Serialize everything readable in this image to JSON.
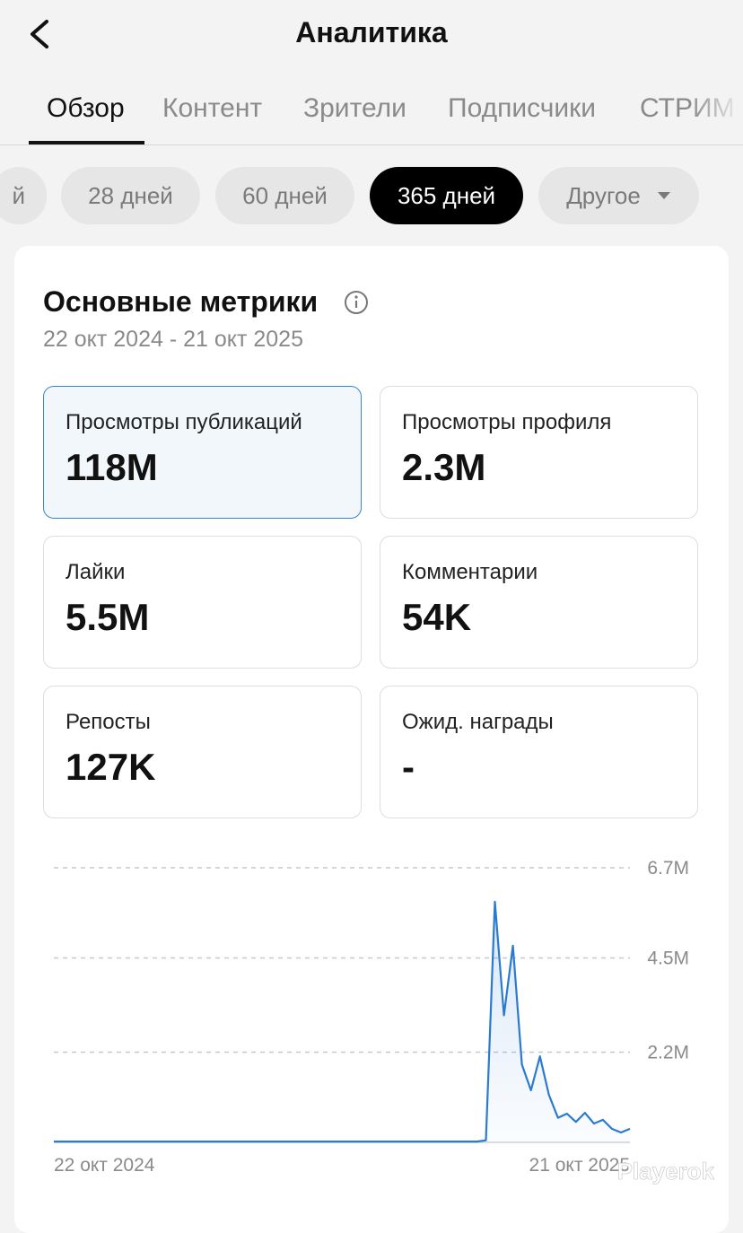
{
  "header": {
    "title": "Аналитика"
  },
  "tabs": [
    "Обзор",
    "Контент",
    "Зрители",
    "Подписчики",
    "СТРИМ"
  ],
  "periods": [
    "й",
    "28 дней",
    "60 дней",
    "365 дней",
    "Другое"
  ],
  "card": {
    "title": "Основные метрики",
    "date_range": "22 окт 2024 - 21 окт 2025"
  },
  "metrics": [
    {
      "label": "Просмотры публикаций",
      "value": "118M"
    },
    {
      "label": "Просмотры профиля",
      "value": "2.3M"
    },
    {
      "label": "Лайки",
      "value": "5.5M"
    },
    {
      "label": "Комментарии",
      "value": "54K"
    },
    {
      "label": "Репосты",
      "value": "127K"
    },
    {
      "label": "Ожид. награды",
      "value": "-"
    }
  ],
  "chart_data": {
    "type": "line",
    "color": "#2a7bd0",
    "grid": true,
    "categories": [
      "22 окт 2024",
      null,
      null,
      null,
      null,
      null,
      null,
      null,
      null,
      null,
      null,
      null,
      null,
      null,
      null,
      null,
      null,
      null,
      null,
      null,
      null,
      null,
      null,
      null,
      null,
      null,
      null,
      null,
      null,
      null,
      null,
      null,
      null,
      null,
      null,
      null,
      null,
      null,
      null,
      null,
      null,
      null,
      null,
      null,
      null,
      null,
      null,
      null,
      null,
      null,
      null,
      null,
      null,
      null,
      null,
      null,
      null,
      null,
      null,
      null,
      null,
      null,
      null,
      null,
      "21 окт 2025"
    ],
    "values": [
      20000,
      20000,
      20000,
      20000,
      20000,
      20000,
      20000,
      20000,
      20000,
      20000,
      20000,
      20000,
      20000,
      20000,
      20000,
      20000,
      20000,
      20000,
      20000,
      20000,
      20000,
      20000,
      20000,
      20000,
      20000,
      20000,
      20000,
      20000,
      20000,
      20000,
      20000,
      20000,
      20000,
      20000,
      20000,
      20000,
      20000,
      20000,
      20000,
      20000,
      20000,
      20000,
      20000,
      20000,
      20000,
      20000,
      20000,
      20000,
      50000,
      5870000,
      3100000,
      4800000,
      1900000,
      1270000,
      2100000,
      1160000,
      600000,
      700000,
      500000,
      720000,
      460000,
      550000,
      330000,
      240000,
      330000
    ],
    "ylim": [
      0,
      6700000
    ],
    "yticks": [
      {
        "value": 2200000,
        "label": "2.2M"
      },
      {
        "value": 4500000,
        "label": "4.5M"
      },
      {
        "value": 6700000,
        "label": "6.7M"
      }
    ]
  },
  "watermark": "Playerok"
}
